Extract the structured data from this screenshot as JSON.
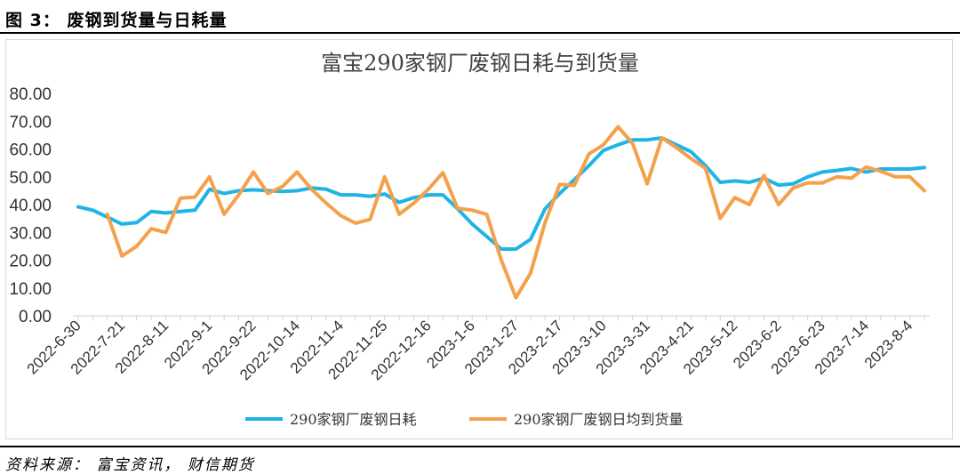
{
  "header": {
    "caption": "图 3： 废钢到货量与日耗量"
  },
  "footer": {
    "source": "资料来源： 富宝资讯， 财信期货"
  },
  "colors": {
    "series_consumption": "#1fb4e6",
    "series_arrival": "#f5a04a"
  },
  "chart_data": {
    "type": "line",
    "title": "富宝290家钢厂废钢日耗与到货量",
    "xlabel": "",
    "ylabel": "",
    "ylim": [
      0,
      80
    ],
    "yticks": [
      "0.00",
      "10.00",
      "20.00",
      "30.00",
      "40.00",
      "50.00",
      "60.00",
      "70.00",
      "80.00"
    ],
    "grid": false,
    "legend": "bottom",
    "x": [
      "2022-6-30",
      "2022-7-7",
      "2022-7-14",
      "2022-7-21",
      "2022-7-28",
      "2022-8-4",
      "2022-8-11",
      "2022-8-18",
      "2022-8-25",
      "2022-9-1",
      "2022-9-8",
      "2022-9-15",
      "2022-9-22",
      "2022-9-29",
      "2022-10-7",
      "2022-10-14",
      "2022-10-21",
      "2022-10-28",
      "2022-11-4",
      "2022-11-11",
      "2022-11-18",
      "2022-11-25",
      "2022-12-2",
      "2022-12-9",
      "2022-12-16",
      "2022-12-23",
      "2022-12-30",
      "2023-1-6",
      "2023-1-13",
      "2023-1-20",
      "2023-1-27",
      "2023-2-3",
      "2023-2-10",
      "2023-2-17",
      "2023-2-24",
      "2023-3-3",
      "2023-3-10",
      "2023-3-17",
      "2023-3-24",
      "2023-3-31",
      "2023-4-7",
      "2023-4-14",
      "2023-4-21",
      "2023-4-28",
      "2023-5-5",
      "2023-5-12",
      "2023-5-19",
      "2023-5-26",
      "2023-6-2",
      "2023-6-9",
      "2023-6-16",
      "2023-6-23",
      "2023-6-30",
      "2023-7-7",
      "2023-7-14",
      "2023-7-21",
      "2023-7-28",
      "2023-8-4",
      "2023-8-11"
    ],
    "xtick_labels": [
      "2022-6-30",
      "2022-7-21",
      "2022-8-11",
      "2022-9-1",
      "2022-9-22",
      "2022-10-14",
      "2022-11-4",
      "2022-11-25",
      "2022-12-16",
      "2023-1-6",
      "2023-1-27",
      "2023-2-17",
      "2023-3-10",
      "2023-3-31",
      "2023-4-21",
      "2023-5-12",
      "2023-6-2",
      "2023-6-23",
      "2023-7-14",
      "2023-8-4"
    ],
    "series": [
      {
        "name": "290家钢厂废钢日耗",
        "values": [
          39.2,
          38.0,
          35.5,
          33.0,
          33.5,
          37.5,
          37.0,
          37.5,
          38.0,
          45.5,
          44.0,
          45.0,
          45.3,
          45.0,
          44.7,
          45.0,
          46.0,
          45.5,
          43.5,
          43.5,
          43.0,
          43.8,
          40.8,
          42.5,
          43.5,
          43.5,
          38.5,
          33.0,
          28.5,
          24.0,
          24.0,
          27.5,
          38.5,
          44.0,
          49.0,
          54.0,
          59.5,
          61.5,
          63.3,
          63.3,
          64.0,
          61.5,
          59.0,
          54.0,
          48.0,
          48.5,
          48.0,
          49.5,
          47.0,
          47.5,
          50.0,
          51.7,
          52.3,
          53.0,
          51.7,
          52.8,
          52.8,
          52.8,
          53.3
        ]
      },
      {
        "name": "290家钢厂废钢日均到货量",
        "values": [
          null,
          null,
          36.5,
          21.5,
          25.0,
          31.3,
          30.0,
          42.3,
          42.7,
          50.0,
          36.5,
          43.5,
          51.7,
          44.0,
          46.5,
          51.7,
          45.5,
          40.5,
          36.0,
          33.3,
          34.7,
          50.0,
          36.5,
          40.5,
          45.5,
          51.5,
          38.7,
          38.0,
          36.5,
          20.0,
          6.5,
          15.3,
          33.5,
          47.3,
          46.9,
          58.2,
          61.5,
          68.0,
          62.0,
          47.5,
          64.0,
          60.5,
          56.5,
          53.0,
          35.0,
          42.5,
          40.0,
          50.5,
          40.0,
          46.0,
          47.8,
          47.8,
          50.0,
          49.5,
          53.5,
          52.0,
          50.0,
          50.0,
          45.0
        ]
      }
    ]
  }
}
